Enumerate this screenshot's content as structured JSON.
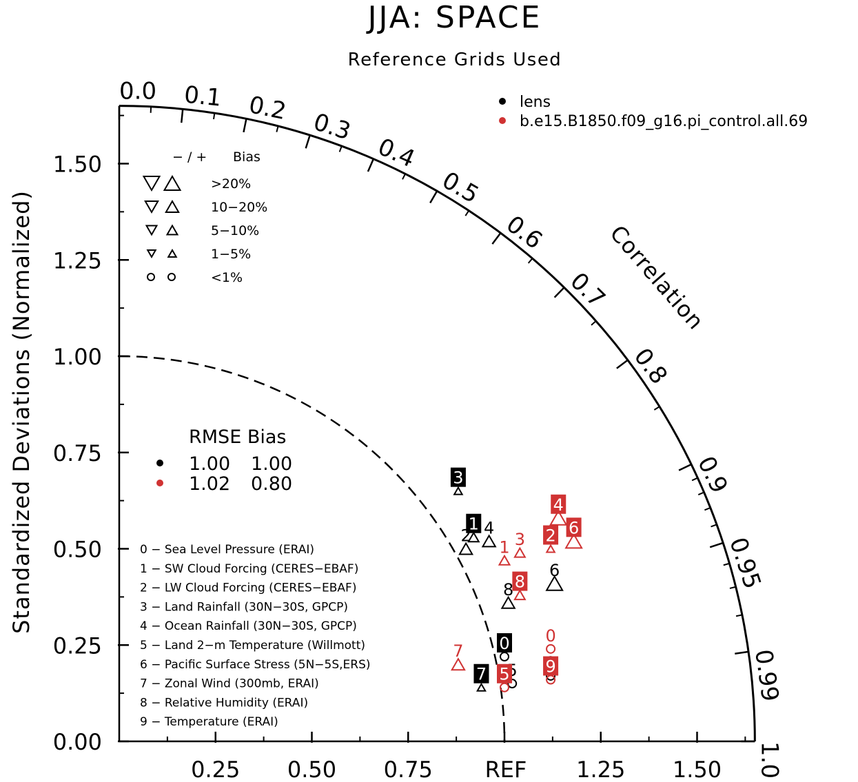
{
  "chart_data": {
    "type": "taylor",
    "title": "JJA: SPACE",
    "subtitle": "Reference Grids Used",
    "ylabel": "Standardized Deviations (Normalized)",
    "correlation_label": "Correlation",
    "reference_label": "REF",
    "std_range": [
      0,
      1.65
    ],
    "y_ticks": [
      "0.00",
      "0.25",
      "0.50",
      "0.75",
      "1.00",
      "1.25",
      "1.50"
    ],
    "x_ticks": [
      "0.25",
      "0.50",
      "0.75",
      "1.25",
      "1.50"
    ],
    "correlation_ticks": [
      "0.0",
      "0.1",
      "0.2",
      "0.3",
      "0.4",
      "0.5",
      "0.6",
      "0.7",
      "0.8",
      "0.9",
      "0.95",
      "0.99",
      "1.0"
    ],
    "models": [
      {
        "name": "lens",
        "color": "#000000"
      },
      {
        "name": "b.e15.B1850.f09_g16.pi_control.all.69",
        "color": "#d03333"
      }
    ],
    "bias_legend": {
      "header_sign": "− / +",
      "header_label": "Bias",
      "rows": [
        ">20%",
        "10−20%",
        "5−10%",
        "1−5%",
        "<1%"
      ]
    },
    "stats_legend": {
      "header": "RMSE Bias",
      "rows": [
        {
          "rmse": "1.00",
          "bias": "1.00",
          "color": "#000000"
        },
        {
          "rmse": "1.02",
          "bias": "0.80",
          "color": "#d03333"
        }
      ]
    },
    "cases": [
      "0 − Sea Level Pressure (ERAI)",
      "1 − SW Cloud Forcing (CERES−EBAF)",
      "2 − LW Cloud Forcing (CERES−EBAF)",
      "3 − Land Rainfall (30N−30S, GPCP)",
      "4 − Ocean Rainfall (30N−30S, GPCP)",
      "5 − Land 2−m Temperature (Willmott)",
      "6 − Pacific Surface Stress (5N−5S,ERS)",
      "7 − Zonal Wind (300mb, ERAI)",
      "8 − Relative Humidity (ERAI)",
      "9 − Temperature (ERAI)"
    ],
    "series": [
      {
        "name": "lens",
        "color": "#000000",
        "points": [
          {
            "id": "0",
            "x": 1.0,
            "y": 0.22,
            "marker": "circle",
            "size": 4,
            "boxed": true
          },
          {
            "id": "1",
            "x": 0.92,
            "y": 0.53,
            "marker": "triangle-up",
            "size": 3,
            "boxed": true
          },
          {
            "id": "2",
            "x": 0.9,
            "y": 0.5,
            "marker": "triangle-up",
            "size": 2,
            "boxed": false
          },
          {
            "id": "3",
            "x": 0.88,
            "y": 0.65,
            "marker": "triangle-up",
            "size": 4,
            "boxed": true
          },
          {
            "id": "4",
            "x": 0.96,
            "y": 0.52,
            "marker": "triangle-up",
            "size": 2,
            "boxed": false
          },
          {
            "id": "5",
            "x": 1.02,
            "y": 0.15,
            "marker": "circle",
            "size": 4,
            "boxed": false
          },
          {
            "id": "6",
            "x": 1.13,
            "y": 0.41,
            "marker": "triangle-up",
            "size": 1,
            "boxed": false
          },
          {
            "id": "7",
            "x": 0.94,
            "y": 0.14,
            "marker": "triangle-up",
            "size": 4,
            "boxed": true
          },
          {
            "id": "8",
            "x": 1.01,
            "y": 0.36,
            "marker": "triangle-up",
            "size": 2,
            "boxed": false
          },
          {
            "id": "9",
            "x": 1.12,
            "y": 0.17,
            "marker": "circle",
            "size": 4,
            "boxed": false
          }
        ]
      },
      {
        "name": "b.e15.B1850.f09_g16.pi_control.all.69",
        "color": "#d03333",
        "points": [
          {
            "id": "0",
            "x": 1.12,
            "y": 0.24,
            "marker": "circle",
            "size": 4,
            "boxed": false
          },
          {
            "id": "1",
            "x": 1.0,
            "y": 0.47,
            "marker": "triangle-up",
            "size": 3,
            "boxed": false
          },
          {
            "id": "2",
            "x": 1.12,
            "y": 0.5,
            "marker": "triangle-up",
            "size": 4,
            "boxed": true
          },
          {
            "id": "3",
            "x": 1.04,
            "y": 0.49,
            "marker": "triangle-up",
            "size": 3,
            "boxed": false
          },
          {
            "id": "4",
            "x": 1.14,
            "y": 0.58,
            "marker": "triangle-up",
            "size": 1,
            "boxed": true
          },
          {
            "id": "5",
            "x": 1.0,
            "y": 0.14,
            "marker": "circle",
            "size": 4,
            "boxed": true
          },
          {
            "id": "6",
            "x": 1.18,
            "y": 0.52,
            "marker": "triangle-up",
            "size": 1,
            "boxed": true
          },
          {
            "id": "7",
            "x": 0.88,
            "y": 0.2,
            "marker": "triangle-up",
            "size": 2,
            "boxed": false
          },
          {
            "id": "8",
            "x": 1.04,
            "y": 0.38,
            "marker": "triangle-up",
            "size": 3,
            "boxed": true
          },
          {
            "id": "9",
            "x": 1.12,
            "y": 0.16,
            "marker": "circle",
            "size": 4,
            "boxed": true
          }
        ]
      }
    ]
  }
}
